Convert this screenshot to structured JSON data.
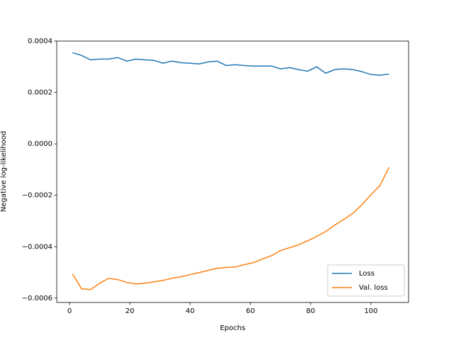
{
  "chart_data": {
    "type": "line",
    "xlabel": "Epochs",
    "ylabel": "Negative log-likelihood",
    "x": [
      1,
      4,
      7,
      10,
      13,
      16,
      19,
      22,
      25,
      28,
      31,
      34,
      37,
      40,
      43,
      46,
      49,
      52,
      55,
      58,
      61,
      64,
      67,
      70,
      73,
      76,
      79,
      82,
      85,
      88,
      91,
      94,
      97,
      100,
      103,
      106
    ],
    "series": [
      {
        "name": "Loss",
        "color": "#1f77b4",
        "values": [
          0.000355,
          0.000344,
          0.000327,
          0.00033,
          0.00033,
          0.000336,
          0.000322,
          0.00033,
          0.000327,
          0.000325,
          0.000314,
          0.000322,
          0.000316,
          0.000314,
          0.000311,
          0.000319,
          0.000322,
          0.000305,
          0.000308,
          0.000305,
          0.000303,
          0.000303,
          0.000303,
          0.000292,
          0.000297,
          0.000289,
          0.000283,
          0.0003,
          0.000275,
          0.000289,
          0.000292,
          0.000289,
          0.000281,
          0.00027,
          0.000267,
          0.000272
        ]
      },
      {
        "name": "Val. loss",
        "color": "#ff7f0e",
        "values": [
          -0.000506,
          -0.000564,
          -0.000567,
          -0.000542,
          -0.000523,
          -0.000528,
          -0.000539,
          -0.000545,
          -0.000542,
          -0.000537,
          -0.000531,
          -0.000523,
          -0.000517,
          -0.000509,
          -0.000501,
          -0.000492,
          -0.000484,
          -0.000481,
          -0.000479,
          -0.00047,
          -0.000462,
          -0.000448,
          -0.000435,
          -0.000415,
          -0.000404,
          -0.000393,
          -0.000377,
          -0.00036,
          -0.000341,
          -0.000316,
          -0.000294,
          -0.00027,
          -0.000237,
          -0.000198,
          -0.000162,
          -9.1e-05
        ]
      }
    ],
    "xlim": [
      -4.25,
      112.5
    ],
    "ylim": [
      -0.000617,
      0.0004
    ],
    "xticks": [
      0,
      20,
      40,
      60,
      80,
      100
    ],
    "yticks": [
      {
        "value": -0.0006,
        "label": "−0.0006"
      },
      {
        "value": -0.0004,
        "label": "−0.0004"
      },
      {
        "value": -0.0002,
        "label": "−0.0002"
      },
      {
        "value": 0,
        "label": "0.0000"
      },
      0.0002,
      0.0004
    ],
    "legend": "lower right"
  }
}
